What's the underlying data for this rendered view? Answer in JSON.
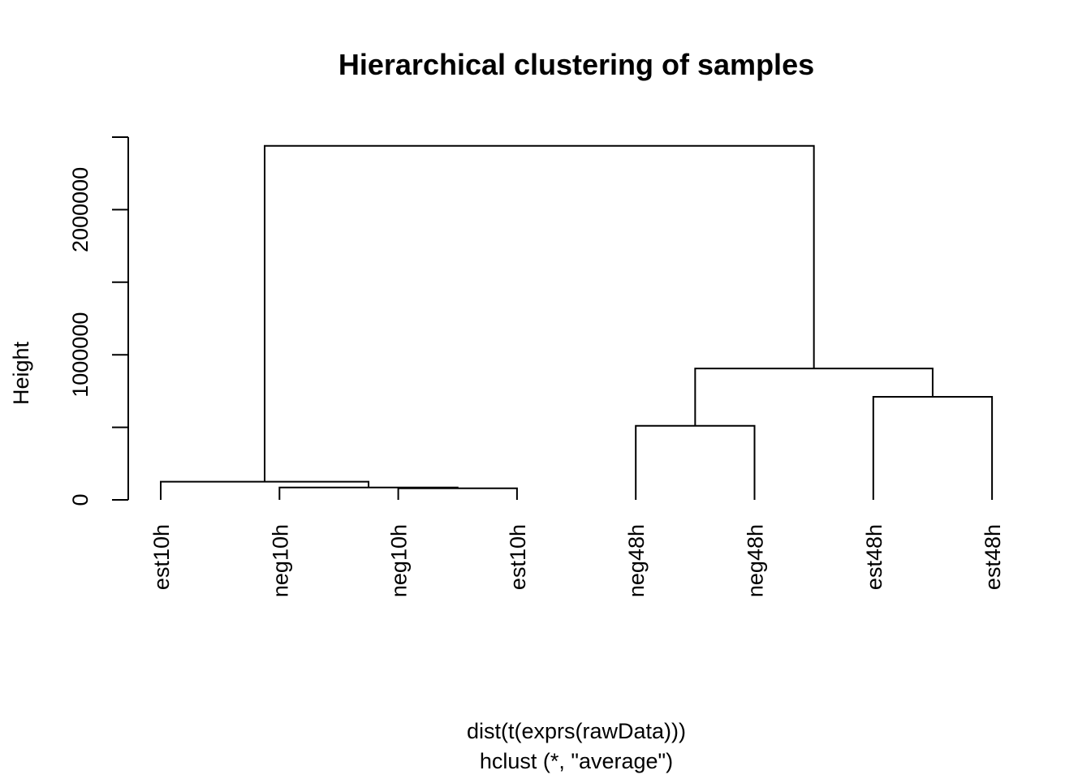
{
  "chart_data": {
    "type": "dendrogram",
    "title": "Hierarchical clustering of samples",
    "ylabel": "Height",
    "xlabel": "dist(t(exprs(rawData)))",
    "sublabel": "hclust (*, \"average\")",
    "ylim": [
      0,
      2500000
    ],
    "yticks": [
      0,
      500000,
      1000000,
      1500000,
      2000000,
      2500000
    ],
    "ytick_labels": [
      "0",
      "",
      "1000000",
      "",
      "2000000",
      ""
    ],
    "leaves": [
      "est10h",
      "neg10h",
      "neg10h",
      "est10h",
      "neg48h",
      "neg48h",
      "est48h",
      "est48h"
    ],
    "merges": [
      {
        "left": 3,
        "right": 4,
        "height": 80000
      },
      {
        "left": 2,
        "right": "m1",
        "height": 85000
      },
      {
        "left": 1,
        "right": "m2",
        "height": 125000
      },
      {
        "left": 5,
        "right": 6,
        "height": 510000
      },
      {
        "left": 7,
        "right": 8,
        "height": 710000
      },
      {
        "left": "m4",
        "right": "m5",
        "height": 905000
      },
      {
        "left": "m3",
        "right": "m6",
        "height": 2440000
      }
    ]
  }
}
